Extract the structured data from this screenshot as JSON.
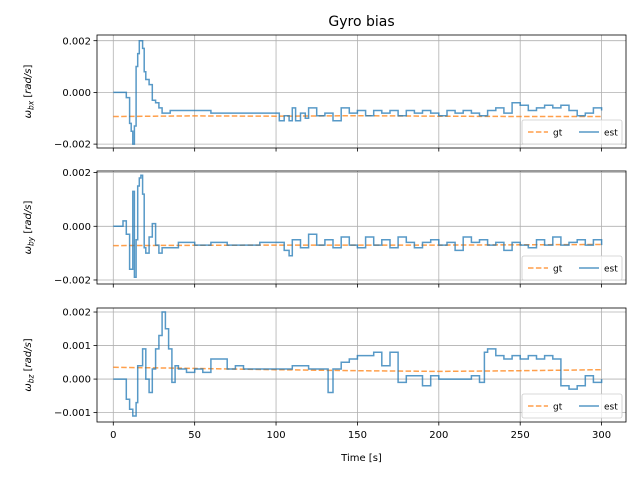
{
  "chart_data": {
    "type": "line",
    "title": "Gyro bias",
    "xlabel": "Time [s]",
    "xlim": [
      -10,
      315
    ],
    "xticks": [
      0,
      50,
      100,
      150,
      200,
      250,
      300
    ],
    "grid": true,
    "legend_position": "lower-right",
    "colors": {
      "gt": "#ff7f0e",
      "est": "#1f77b4"
    },
    "subplots": [
      {
        "ylabel_main": "ω",
        "ylabel_sub": "bx",
        "ylabel_unit": " [rad/s]",
        "ylim": [
          -0.00215,
          0.00222
        ],
        "yticks": [
          -0.002,
          0.0,
          0.002
        ],
        "ytick_labels": [
          "−0.002",
          "0.000",
          "0.002"
        ],
        "series": [
          {
            "name": "gt",
            "style": "dashed",
            "x": [
              0,
              50,
              100,
              150,
              200,
              250,
              300
            ],
            "y": [
              -0.00093,
              -0.00091,
              -0.00092,
              -0.0009,
              -0.00092,
              -0.00093,
              -0.00093
            ]
          },
          {
            "name": "est",
            "style": "solid",
            "x": [
              0,
              3,
              6,
              8,
              10,
              11,
              12,
              13,
              14,
              15,
              16,
              17,
              18,
              19,
              20,
              22,
              24,
              26,
              28,
              30,
              35,
              40,
              50,
              60,
              70,
              80,
              90,
              100,
              102,
              105,
              108,
              110,
              112,
              115,
              118,
              120,
              125,
              130,
              135,
              140,
              145,
              150,
              155,
              160,
              165,
              170,
              175,
              180,
              185,
              190,
              195,
              200,
              205,
              210,
              215,
              220,
              225,
              230,
              235,
              240,
              245,
              250,
              255,
              260,
              265,
              270,
              275,
              280,
              285,
              290,
              295,
              300
            ],
            "y": [
              0.0,
              0.0,
              0.0,
              -0.0002,
              -0.0012,
              -0.0015,
              -0.002,
              -0.0013,
              0.001,
              0.0015,
              0.002,
              0.002,
              0.0017,
              0.0008,
              0.0005,
              0.0003,
              -0.0003,
              -0.0004,
              -0.0006,
              -0.0008,
              -0.0007,
              -0.0007,
              -0.0007,
              -0.0008,
              -0.0008,
              -0.0008,
              -0.0008,
              -0.0008,
              -0.0011,
              -0.0009,
              -0.0011,
              -0.0006,
              -0.0011,
              -0.0008,
              -0.001,
              -0.0006,
              -0.0009,
              -0.0008,
              -0.0011,
              -0.0006,
              -0.0008,
              -0.0007,
              -0.0009,
              -0.0007,
              -0.0008,
              -0.0007,
              -0.0009,
              -0.0007,
              -0.0008,
              -0.0007,
              -0.0008,
              -0.0009,
              -0.0007,
              -0.0008,
              -0.0007,
              -0.0008,
              -0.0009,
              -0.0007,
              -0.0006,
              -0.0008,
              -0.0004,
              -0.0005,
              -0.0007,
              -0.0006,
              -0.0005,
              -0.0006,
              -0.0005,
              -0.0007,
              -0.0009,
              -0.0008,
              -0.0006,
              -0.0007
            ]
          }
        ]
      },
      {
        "ylabel_main": "ω",
        "ylabel_sub": "by",
        "ylabel_unit": " [rad/s]",
        "ylim": [
          -0.00215,
          0.00206
        ],
        "yticks": [
          -0.002,
          0.0,
          0.002
        ],
        "ytick_labels": [
          "−0.002",
          "0.000",
          "0.002"
        ],
        "series": [
          {
            "name": "gt",
            "style": "dashed",
            "x": [
              0,
              50,
              100,
              150,
              200,
              250,
              300
            ],
            "y": [
              -0.00072,
              -0.00071,
              -0.0007,
              -0.0007,
              -0.0007,
              -0.00069,
              -0.00068
            ]
          },
          {
            "name": "est",
            "style": "solid",
            "x": [
              0,
              3,
              6,
              8,
              10,
              12,
              13,
              14,
              15,
              16,
              17,
              18,
              19,
              20,
              22,
              24,
              26,
              28,
              30,
              35,
              40,
              50,
              60,
              70,
              80,
              90,
              100,
              105,
              108,
              110,
              115,
              120,
              125,
              130,
              135,
              140,
              145,
              150,
              155,
              160,
              165,
              170,
              175,
              180,
              185,
              190,
              195,
              200,
              205,
              210,
              215,
              220,
              225,
              230,
              235,
              240,
              245,
              250,
              255,
              260,
              265,
              270,
              275,
              280,
              285,
              290,
              295,
              300
            ],
            "y": [
              0.0,
              0.0,
              0.0002,
              -0.0003,
              -0.0016,
              0.0013,
              -0.0019,
              -0.0005,
              0.0015,
              0.0018,
              0.0019,
              0.0012,
              -0.0008,
              -0.001,
              -0.0004,
              0.0001,
              -0.0007,
              -0.001,
              -0.0008,
              -0.0008,
              -0.0006,
              -0.0007,
              -0.0006,
              -0.0007,
              -0.0007,
              -0.0006,
              -0.0006,
              -0.0009,
              -0.0011,
              -0.0005,
              -0.0008,
              -0.0003,
              -0.0007,
              -0.0005,
              -0.0008,
              -0.0004,
              -0.0007,
              -0.0008,
              -0.0004,
              -0.0007,
              -0.0005,
              -0.0008,
              -0.0004,
              -0.0006,
              -0.0008,
              -0.0006,
              -0.0005,
              -0.0007,
              -0.0006,
              -0.0009,
              -0.0004,
              -0.0006,
              -0.0005,
              -0.0007,
              -0.0006,
              -0.0009,
              -0.0006,
              -0.0007,
              -0.0008,
              -0.0005,
              -0.0007,
              -0.0004,
              -0.0007,
              -0.0006,
              -0.0005,
              -0.0007,
              -0.0005,
              -0.0007
            ]
          }
        ]
      },
      {
        "ylabel_main": "ω",
        "ylabel_sub": "bz",
        "ylabel_unit": " [rad/s]",
        "ylim": [
          -0.00128,
          0.00212
        ],
        "yticks": [
          -0.001,
          0.0,
          0.001,
          0.002
        ],
        "ytick_labels": [
          "−0.001",
          "0.000",
          "0.001",
          "0.002"
        ],
        "series": [
          {
            "name": "gt",
            "style": "dashed",
            "x": [
              0,
              50,
              100,
              150,
              200,
              250,
              300
            ],
            "y": [
              0.00035,
              0.00032,
              0.00028,
              0.00025,
              0.00023,
              0.00025,
              0.00028
            ]
          },
          {
            "name": "est",
            "style": "solid",
            "x": [
              0,
              3,
              6,
              8,
              10,
              12,
              14,
              15,
              18,
              20,
              22,
              24,
              26,
              28,
              30,
              32,
              34,
              36,
              38,
              40,
              45,
              50,
              55,
              60,
              70,
              75,
              80,
              90,
              100,
              110,
              120,
              130,
              132,
              135,
              140,
              145,
              150,
              155,
              160,
              165,
              170,
              175,
              180,
              190,
              195,
              200,
              210,
              220,
              225,
              228,
              230,
              235,
              240,
              245,
              250,
              255,
              260,
              265,
              270,
              275,
              280,
              285,
              290,
              295,
              300
            ],
            "y": [
              0.0,
              0.0,
              0.0,
              -0.0006,
              -0.0009,
              -0.0011,
              -0.0007,
              0.0004,
              0.0009,
              0.0,
              -0.0004,
              0.0003,
              0.0009,
              0.0013,
              0.002,
              0.0015,
              0.0009,
              -0.0001,
              0.0004,
              0.0003,
              0.0002,
              0.0003,
              0.0002,
              0.0006,
              0.0003,
              0.0004,
              0.0003,
              0.0003,
              0.0003,
              0.0004,
              0.0003,
              0.0003,
              -0.0004,
              0.0003,
              0.0005,
              0.0006,
              0.0007,
              0.0007,
              0.0008,
              0.0004,
              0.0008,
              -0.0001,
              0.0001,
              -0.0002,
              0.0001,
              0.0,
              0.0,
              0.0001,
              -0.0001,
              0.0008,
              0.0009,
              0.0007,
              0.0006,
              0.0007,
              0.0006,
              0.0007,
              0.0006,
              0.0007,
              0.0006,
              -0.0002,
              -0.0003,
              -0.0002,
              0.0001,
              -0.0001,
              0.0
            ]
          }
        ]
      }
    ]
  }
}
